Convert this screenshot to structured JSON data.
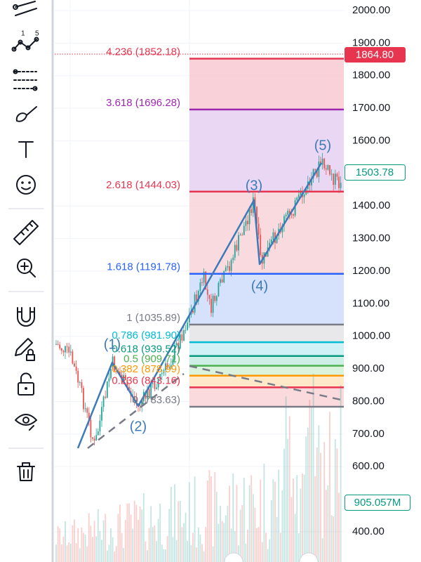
{
  "price_axis": [
    {
      "value": 2000,
      "label": "2000.00"
    },
    {
      "value": 1900,
      "label": "1900.00"
    },
    {
      "value": 1800,
      "label": "1800.00"
    },
    {
      "value": 1700,
      "label": "1700.00"
    },
    {
      "value": 1600,
      "label": "1600.00"
    },
    {
      "value": 1400,
      "label": "1400.00"
    },
    {
      "value": 1300,
      "label": "1300.00"
    },
    {
      "value": 1200,
      "label": "1200.00"
    },
    {
      "value": 1100,
      "label": "1100.00"
    },
    {
      "value": 1000,
      "label": "1000.00"
    },
    {
      "value": 900,
      "label": "900.00"
    },
    {
      "value": 800,
      "label": "800.00"
    },
    {
      "value": 700,
      "label": "700.00"
    },
    {
      "value": 600,
      "label": "600.00"
    },
    {
      "value": 400,
      "label": "400.00"
    }
  ],
  "fib_levels": [
    {
      "label": "4.236 (1852.18)",
      "price": 1852.18,
      "color": "#e8354f"
    },
    {
      "label": "3.618 (1696.28)",
      "price": 1696.28,
      "color": "#9c27b0"
    },
    {
      "label": "2.618 (1444.03)",
      "price": 1444.03,
      "color": "#e8354f"
    },
    {
      "label": "1.618 (1191.78)",
      "price": 1191.78,
      "color": "#2962ff"
    },
    {
      "label": "1 (1035.89)",
      "price": 1035.89,
      "color": "#787b86"
    },
    {
      "label": "0.786 (981.90)",
      "price": 981.9,
      "color": "#00bcd4"
    },
    {
      "label": "0.618 (939.52)",
      "price": 939.52,
      "color": "#089981"
    },
    {
      "label": "0.5 (909.71)",
      "price": 909.71,
      "color": "#4caf50"
    },
    {
      "label": "0.382 (878.99)",
      "price": 878.99,
      "color": "#ff9800"
    },
    {
      "label": "0.236 (843.16)",
      "price": 843.16,
      "color": "#e8354f"
    },
    {
      "label": "0 (783.63)",
      "price": 783.63,
      "color": "#787b86"
    }
  ],
  "waves": [
    "(1)",
    "(2)",
    "(3)",
    "(4)",
    "(5)"
  ],
  "price_tags": {
    "alert": "1864.80",
    "last": "1503.78",
    "volume": "905.057M"
  }
}
